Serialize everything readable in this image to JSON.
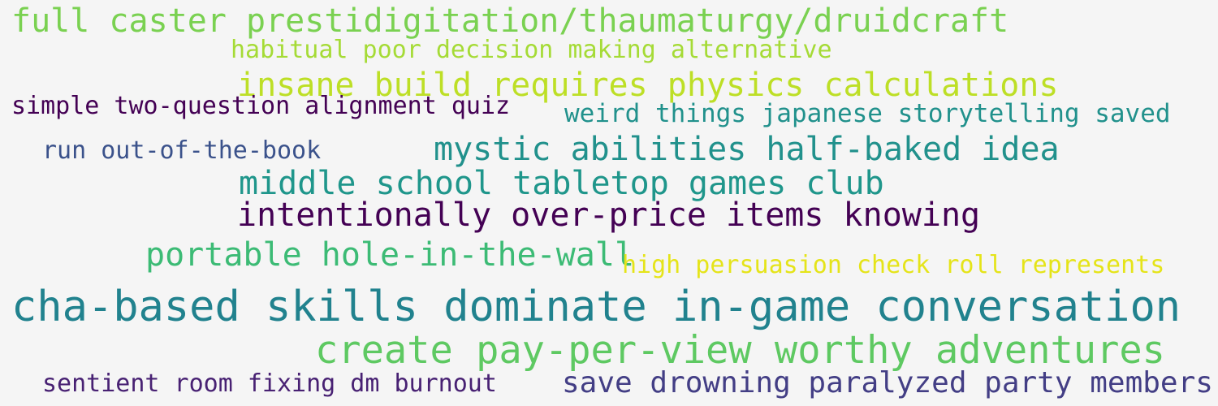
{
  "phrases": [
    {
      "text": "full caster prestidigitation/thaumaturgy/druidcraft",
      "color": "#7ad151"
    },
    {
      "text": "habitual poor decision making alternative",
      "color": "#a5db36"
    },
    {
      "text": "insane build requires physics calculations",
      "color": "#bddf26"
    },
    {
      "text": "simple two-question alignment quiz",
      "color": "#440154"
    },
    {
      "text": "weird things japanese storytelling saved",
      "color": "#21918c"
    },
    {
      "text": "run out-of-the-book",
      "color": "#3b528b"
    },
    {
      "text": "mystic abilities half-baked idea",
      "color": "#21918c"
    },
    {
      "text": "middle school tabletop games club",
      "color": "#1f968b"
    },
    {
      "text": "intentionally over-price items knowing",
      "color": "#440154"
    },
    {
      "text": "portable hole-in-the-wall",
      "color": "#3cbb75"
    },
    {
      "text": "high persuasion check roll represents",
      "color": "#e5e419"
    },
    {
      "text": "cha-based skills dominate in-game conversation",
      "color": "#21828e"
    },
    {
      "text": "create pay-per-view worthy adventures",
      "color": "#5ec962"
    },
    {
      "text": "sentient room fixing dm burnout",
      "color": "#482173"
    },
    {
      "text": "save drowning paralyzed party members",
      "color": "#433e85"
    }
  ]
}
